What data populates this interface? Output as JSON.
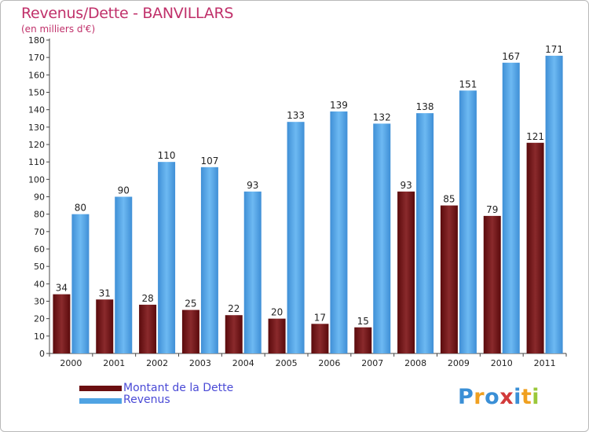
{
  "header": {
    "title": "Revenus/Dette - BANVILLARS",
    "subtitle": "(en milliers d'€)"
  },
  "legend": {
    "items": [
      {
        "label": "Montant de la Dette",
        "color": "#6b0e10"
      },
      {
        "label": "Revenus",
        "color": "#4fa3e3"
      }
    ]
  },
  "logo": {
    "letters": [
      "P",
      "r",
      "o",
      "x",
      "i",
      "t",
      "i"
    ],
    "colors": [
      "#3a8fd6",
      "#f0a020",
      "#3a8fd6",
      "#d23a3a",
      "#3a8fd6",
      "#f0a020",
      "#9ac83a"
    ]
  },
  "chart_data": {
    "type": "bar",
    "title": "Revenus/Dette - BANVILLARS",
    "subtitle": "(en milliers d'€)",
    "categories": [
      "2000",
      "2001",
      "2002",
      "2003",
      "2004",
      "2005",
      "2006",
      "2007",
      "2008",
      "2009",
      "2010",
      "2011"
    ],
    "series": [
      {
        "name": "Montant de la Dette",
        "color": "#6b0e10",
        "values": [
          34,
          31,
          28,
          25,
          22,
          20,
          17,
          15,
          93,
          85,
          79,
          121
        ]
      },
      {
        "name": "Revenus",
        "color": "#4fa3e3",
        "values": [
          80,
          90,
          110,
          107,
          93,
          133,
          139,
          132,
          138,
          151,
          167,
          171
        ]
      }
    ],
    "ylim": [
      0,
      180
    ],
    "yticks": [
      0,
      10,
      20,
      30,
      40,
      50,
      60,
      70,
      80,
      90,
      100,
      110,
      120,
      130,
      140,
      150,
      160,
      170,
      180
    ],
    "grid": false,
    "legend_position": "bottom-left"
  }
}
